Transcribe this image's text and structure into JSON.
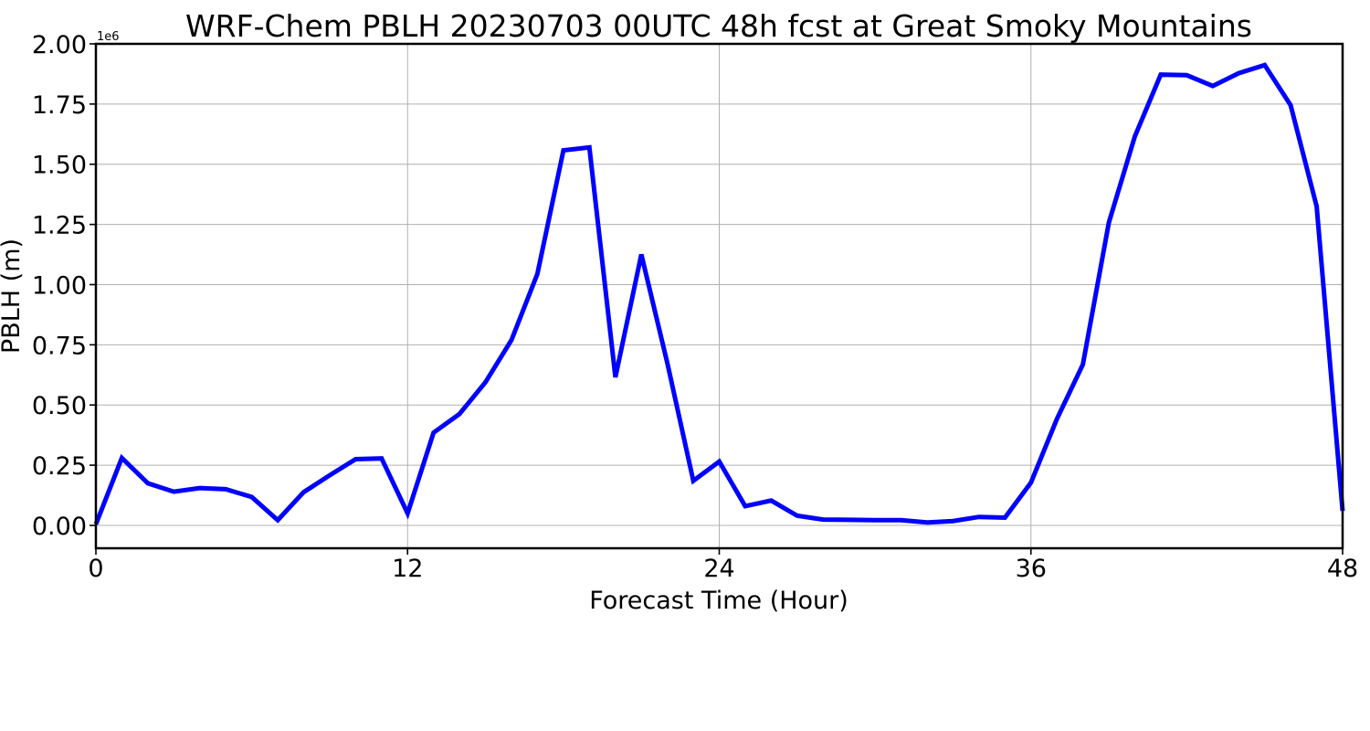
{
  "chart_data": {
    "type": "line",
    "title": "WRF-Chem PBLH  20230703 00UTC 48h fcst at Great Smoky Mountains",
    "xlabel": "Forecast Time (Hour)",
    "ylabel": "PBLH  (m)",
    "y_offset_label": "1e6",
    "xlim": [
      0,
      48
    ],
    "ylim": [
      -95000,
      2000000
    ],
    "x_ticks": [
      0,
      12,
      24,
      36,
      48
    ],
    "x_tick_labels": [
      "0",
      "12",
      "24",
      "36",
      "48"
    ],
    "y_ticks": [
      0,
      250000,
      500000,
      750000,
      1000000,
      1250000,
      1500000,
      1750000,
      2000000
    ],
    "y_tick_labels": [
      "0.00",
      "0.25",
      "0.50",
      "0.75",
      "1.00",
      "1.25",
      "1.50",
      "1.75",
      "2.00"
    ],
    "grid": true,
    "line_color": "#0000ff",
    "series": [
      {
        "x": [
          0,
          1,
          2,
          3,
          4,
          5,
          6,
          7,
          8,
          9,
          10,
          11,
          12,
          13,
          14,
          15,
          16,
          17,
          18,
          19,
          20,
          21,
          22,
          23,
          24,
          25,
          26,
          27,
          28,
          29,
          30,
          31,
          32,
          33,
          34,
          35,
          36,
          37,
          38,
          39,
          40,
          41,
          42,
          43,
          44,
          45,
          46,
          47,
          48
        ],
        "values": [
          5000,
          280000,
          175000,
          140000,
          155000,
          150000,
          118000,
          22000,
          138000,
          208000,
          275000,
          278000,
          50000,
          385000,
          463000,
          595000,
          770000,
          1045000,
          1558000,
          1570000,
          615000,
          1125000,
          675000,
          185000,
          265000,
          80000,
          103000,
          40000,
          24000,
          23000,
          22000,
          22000,
          12000,
          18000,
          35000,
          32000,
          178000,
          442000,
          668000,
          1258000,
          1615000,
          1872000,
          1870000,
          1825000,
          1878000,
          1912000,
          1745000,
          1325000,
          60000
        ]
      }
    ]
  }
}
